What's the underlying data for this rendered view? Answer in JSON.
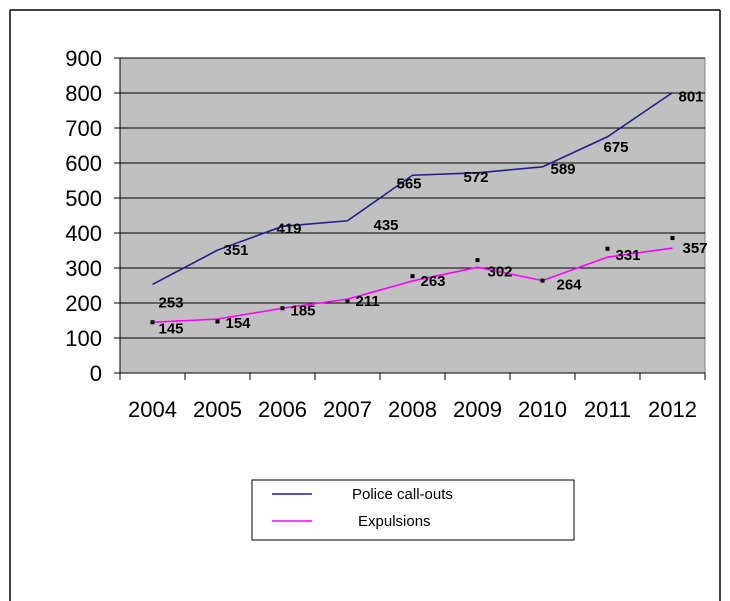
{
  "chart_data": {
    "type": "line",
    "title": "",
    "xlabel": "",
    "ylabel": "",
    "categories": [
      "2004",
      "2005",
      "2006",
      "2007",
      "2008",
      "2009",
      "2010",
      "2011",
      "2012"
    ],
    "ylim": [
      0,
      900
    ],
    "yticks": [
      "0",
      "100",
      "200",
      "300",
      "400",
      "500",
      "600",
      "700",
      "800",
      "900"
    ],
    "grid": true,
    "plot_background": "#c0c0c0",
    "legend_position": "bottom",
    "series": [
      {
        "name": "Police call-outs",
        "color": "#1f1f8f",
        "values": [
          253,
          351,
          419,
          435,
          565,
          572,
          589,
          675,
          801
        ],
        "labels": [
          "253",
          "351",
          "419",
          "435",
          "565",
          "572",
          "589",
          "675",
          "801"
        ]
      },
      {
        "name": "Expulsions",
        "color": "#ff00ff",
        "values": [
          145,
          154,
          185,
          211,
          263,
          302,
          264,
          331,
          357
        ],
        "labels": [
          "145",
          "154",
          "185",
          "211",
          "263",
          "302",
          "264",
          "331",
          "357"
        ]
      }
    ]
  }
}
